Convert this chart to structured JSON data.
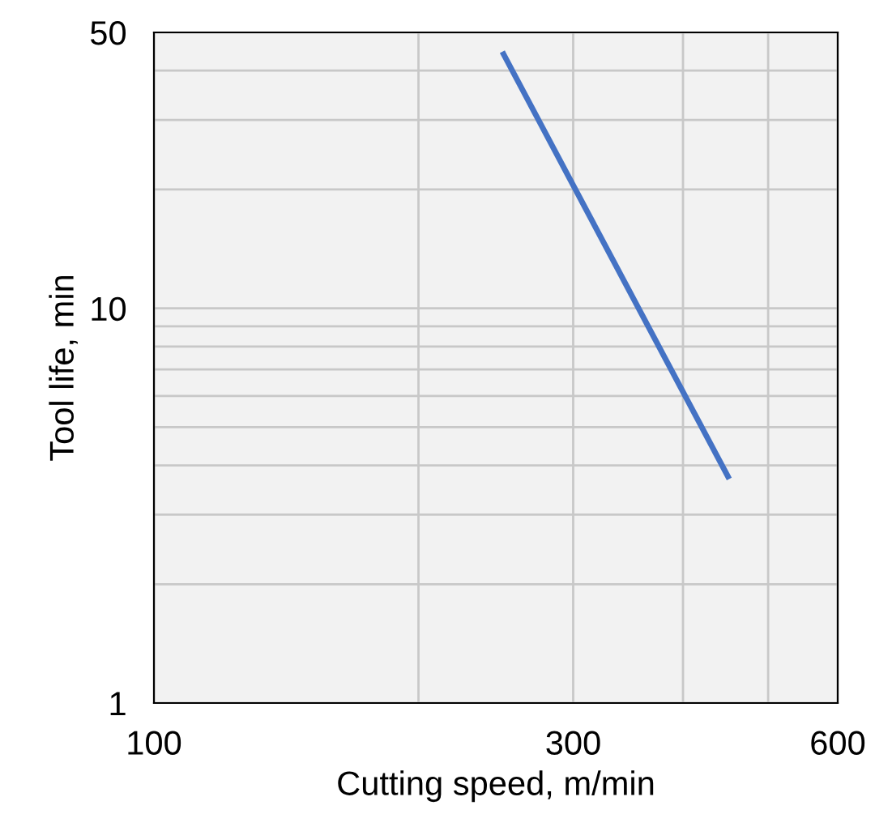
{
  "chart_data": {
    "type": "line",
    "xlabel": "Cutting speed, m/min",
    "ylabel": "Tool life, min",
    "log": "xy",
    "grid": true,
    "x": [
      250,
      450
    ],
    "series": [
      {
        "color": "#4472c4",
        "values": [
          44,
          3.75
        ]
      }
    ],
    "xlim": [
      100,
      600
    ],
    "ylim": [
      1,
      50
    ],
    "xticks": [
      100,
      {
        "value": 200,
        "label": null
      },
      300,
      {
        "value": 400,
        "label": null
      },
      {
        "value": 500,
        "label": null
      },
      600
    ],
    "yticks": [
      1,
      {
        "value": 2,
        "label": null
      },
      {
        "value": 3,
        "label": null
      },
      {
        "value": 4,
        "label": null
      },
      {
        "value": 5,
        "label": null
      },
      {
        "value": 6,
        "label": null
      },
      {
        "value": 7,
        "label": null
      },
      {
        "value": 8,
        "label": null
      },
      {
        "value": 9,
        "label": null
      },
      10,
      {
        "value": 20,
        "label": null
      },
      {
        "value": 30,
        "label": null
      },
      {
        "value": 40,
        "label": null
      },
      50
    ],
    "marker": "none",
    "line_style": "solid"
  }
}
